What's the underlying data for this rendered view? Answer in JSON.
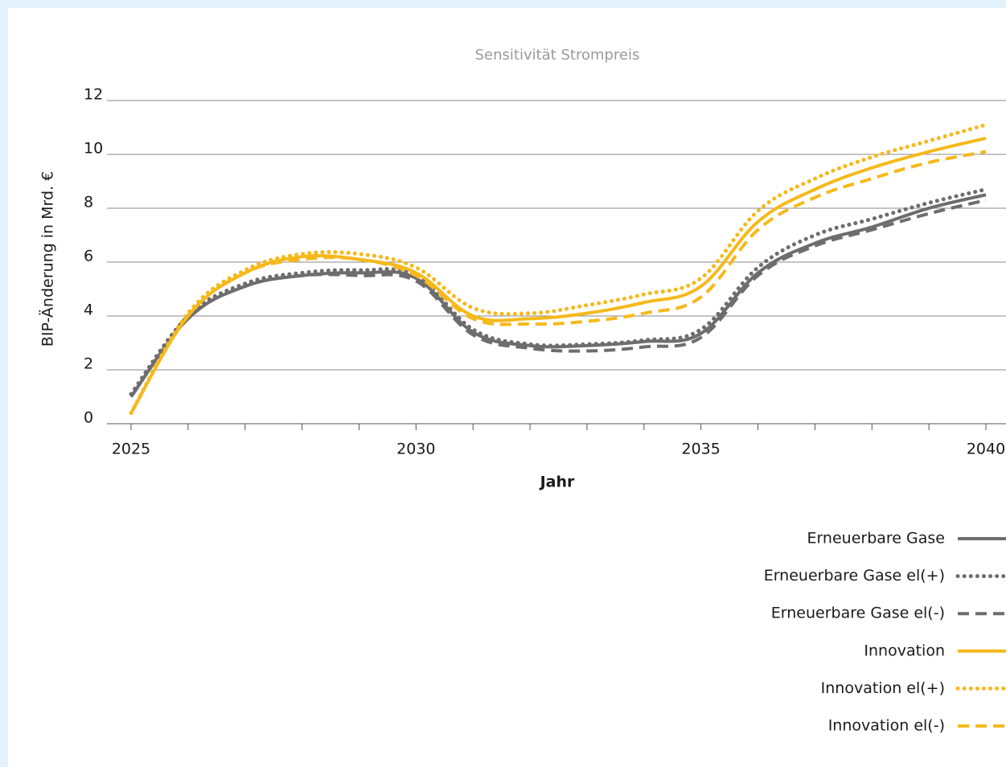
{
  "chart_data": {
    "type": "line",
    "title": "Sensitivität Strompreis",
    "x_label": "Jahr",
    "y_label": "BIP-Änderung in Mrd. €",
    "x": [
      2025,
      2026,
      2027,
      2028,
      2029,
      2030,
      2031,
      2032,
      2033,
      2034,
      2035,
      2036,
      2037,
      2038,
      2039,
      2040
    ],
    "xlim": [
      2025,
      2040
    ],
    "xticks": [
      2025,
      2030,
      2035,
      2040
    ],
    "ylim": [
      0,
      12
    ],
    "yticks": [
      0,
      2,
      4,
      6,
      8,
      10,
      12
    ],
    "grid": true,
    "legend": "bottom-right",
    "series": [
      {
        "name": "Erneuerbare Gase",
        "color": "#6d6d6e",
        "style": "solid",
        "values": [
          1.0,
          3.9,
          5.1,
          5.5,
          5.6,
          5.4,
          3.4,
          2.9,
          2.9,
          3.05,
          3.35,
          5.6,
          6.7,
          7.3,
          8.0,
          8.5
        ]
      },
      {
        "name": "Erneuerbare Gase el(+)",
        "color": "#6d6d6e",
        "style": "dotted",
        "values": [
          1.1,
          4.0,
          5.2,
          5.6,
          5.7,
          5.5,
          3.5,
          2.95,
          2.95,
          3.1,
          3.5,
          5.8,
          7.0,
          7.6,
          8.2,
          8.7
        ]
      },
      {
        "name": "Erneuerbare Gase el(-)",
        "color": "#6d6d6e",
        "style": "dashed",
        "values": [
          1.0,
          3.9,
          5.1,
          5.5,
          5.5,
          5.3,
          3.3,
          2.8,
          2.7,
          2.85,
          3.2,
          5.5,
          6.6,
          7.2,
          7.8,
          8.3
        ]
      },
      {
        "name": "Innovation",
        "color": "#f6b91c",
        "style": "solid",
        "values": [
          0.4,
          4.0,
          5.6,
          6.2,
          6.1,
          5.6,
          4.0,
          3.9,
          4.1,
          4.5,
          5.1,
          7.5,
          8.7,
          9.5,
          10.1,
          10.6
        ]
      },
      {
        "name": "Innovation el(+)",
        "color": "#f6b91c",
        "style": "dotted",
        "values": [
          0.4,
          4.1,
          5.7,
          6.3,
          6.3,
          5.8,
          4.3,
          4.1,
          4.4,
          4.8,
          5.4,
          7.9,
          9.1,
          9.9,
          10.5,
          11.1
        ]
      },
      {
        "name": "Innovation el(-)",
        "color": "#f6b91c",
        "style": "dashed",
        "values": [
          0.4,
          4.0,
          5.6,
          6.1,
          6.1,
          5.5,
          3.9,
          3.7,
          3.8,
          4.1,
          4.7,
          7.2,
          8.4,
          9.1,
          9.7,
          10.1
        ]
      }
    ]
  }
}
